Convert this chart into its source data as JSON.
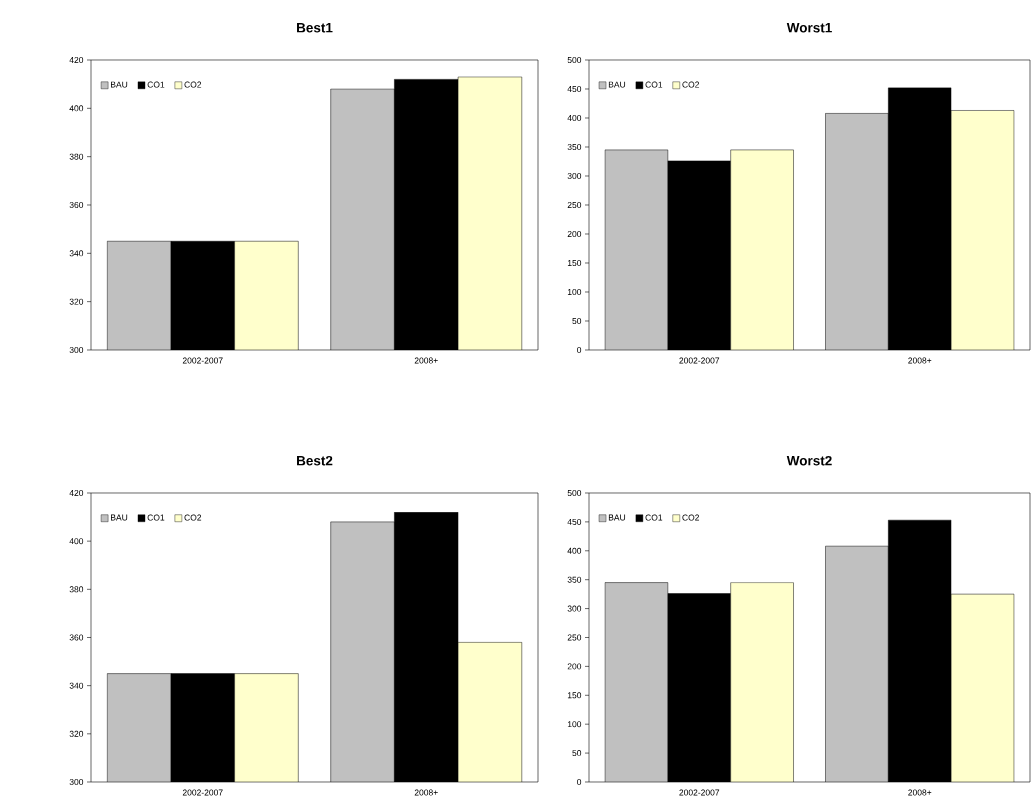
{
  "chart_data": [
    {
      "type": "bar",
      "title": "Best1",
      "categories": [
        "2002-2007",
        "2008+"
      ],
      "ylim": [
        300,
        420
      ],
      "yticks": [
        300,
        320,
        340,
        360,
        380,
        400,
        420
      ],
      "legend": "top left",
      "series": [
        {
          "name": "BAU",
          "color": "#c0c0c0",
          "values": [
            345,
            408
          ]
        },
        {
          "name": "CO1",
          "color": "#000000",
          "values": [
            345,
            412
          ]
        },
        {
          "name": "CO2",
          "color": "#ffffcc",
          "values": [
            345,
            413
          ]
        }
      ]
    },
    {
      "type": "bar",
      "title": "Worst1",
      "categories": [
        "2002-2007",
        "2008+"
      ],
      "ylim": [
        0,
        500
      ],
      "yticks": [
        0,
        50,
        100,
        150,
        200,
        250,
        300,
        350,
        400,
        450,
        500
      ],
      "legend": "top left",
      "series": [
        {
          "name": "BAU",
          "color": "#c0c0c0",
          "values": [
            345,
            408
          ]
        },
        {
          "name": "CO1",
          "color": "#000000",
          "values": [
            326,
            452
          ]
        },
        {
          "name": "CO2",
          "color": "#ffffcc",
          "values": [
            345,
            413
          ]
        }
      ]
    },
    {
      "type": "bar",
      "title": "Best2",
      "categories": [
        "2002-2007",
        "2008+"
      ],
      "ylim": [
        300,
        420
      ],
      "yticks": [
        300,
        320,
        340,
        360,
        380,
        400,
        420
      ],
      "legend": "top left",
      "series": [
        {
          "name": "BAU",
          "color": "#c0c0c0",
          "values": [
            345,
            408
          ]
        },
        {
          "name": "CO1",
          "color": "#000000",
          "values": [
            345,
            412
          ]
        },
        {
          "name": "CO2",
          "color": "#ffffcc",
          "values": [
            345,
            358
          ]
        }
      ]
    },
    {
      "type": "bar",
      "title": "Worst2",
      "categories": [
        "2002-2007",
        "2008+"
      ],
      "ylim": [
        0,
        500
      ],
      "yticks": [
        0,
        50,
        100,
        150,
        200,
        250,
        300,
        350,
        400,
        450,
        500
      ],
      "legend": "top left",
      "series": [
        {
          "name": "BAU",
          "color": "#c0c0c0",
          "values": [
            345,
            408
          ]
        },
        {
          "name": "CO1",
          "color": "#000000",
          "values": [
            326,
            453
          ]
        },
        {
          "name": "CO2",
          "color": "#ffffcc",
          "values": [
            345,
            325
          ]
        }
      ]
    }
  ]
}
